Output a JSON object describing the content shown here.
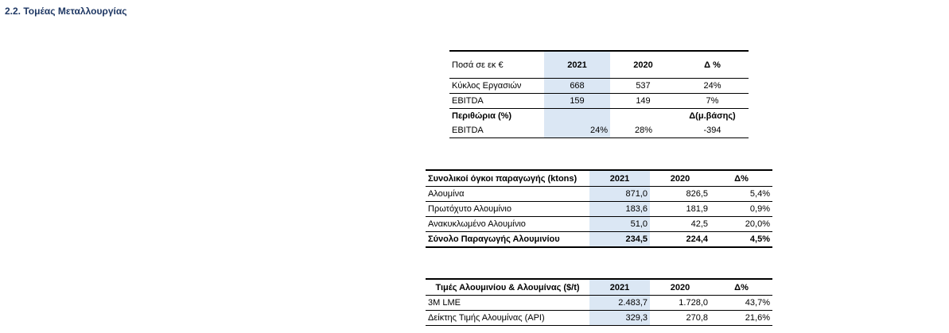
{
  "heading": "2.2.  Τομέας Μεταλλουργίας",
  "financials": {
    "header": [
      "Ποσά σε εκ €",
      "2021",
      "2020",
      "Δ %"
    ],
    "rows": [
      [
        "Κύκλος Εργασιών",
        "668",
        "537",
        "24%"
      ],
      [
        "EBITDA",
        "159",
        "149",
        "7%"
      ]
    ],
    "margins_header": [
      "Περιθώρια (%)",
      "",
      "",
      "Δ(μ.βάσης)"
    ],
    "margins_rows": [
      [
        "EBITDA",
        "24%",
        "28%",
        "-394"
      ]
    ]
  },
  "production": {
    "header": [
      "Συνολικοί όγκοι παραγωγής (ktons)",
      "2021",
      "2020",
      "Δ%"
    ],
    "rows": [
      [
        "Αλουμίνα",
        "871,0",
        "826,5",
        "5,4%"
      ],
      [
        "Πρωτόχυτο Αλουμίνιο",
        "183,6",
        "181,9",
        "0,9%"
      ],
      [
        "Ανακυκλωμένο Αλουμίνιο",
        "51,0",
        "42,5",
        "20,0%"
      ]
    ],
    "total": [
      "Σύνολο Παραγωγής Αλουμινίου",
      "234,5",
      "224,4",
      "4,5%"
    ]
  },
  "prices": {
    "header": [
      "Τιμές Αλουμινίου & Αλουμίνας ($/t)",
      "2021",
      "2020",
      "Δ%"
    ],
    "rows": [
      [
        "3M LME",
        "2.483,7",
        "1.728,0",
        "43,7%"
      ],
      [
        "Δείκτης Τιμής Αλουμίνας (API)",
        "329,3",
        "270,8",
        "21,6%"
      ]
    ]
  }
}
